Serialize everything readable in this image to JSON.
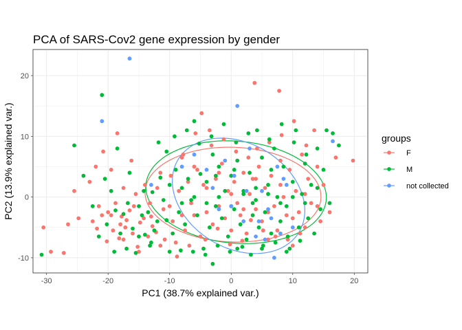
{
  "chart_data": {
    "type": "scatter",
    "title": "PCA of SARS-Cov2 gene expression by gender",
    "xlabel": "PC1 (38.7% explained var.)",
    "ylabel": "PC2 (13.9% explained var.)",
    "xlim": [
      -32.2,
      22.2
    ],
    "ylim": [
      -12.5,
      24.3
    ],
    "x_ticks": [
      -30,
      -20,
      -10,
      0,
      10,
      20
    ],
    "y_ticks": [
      -10,
      0,
      10,
      20
    ],
    "x_tick_labels": [
      "-30",
      "-20",
      "-10",
      "0",
      "10",
      "20"
    ],
    "y_tick_labels": [
      "-10",
      "0",
      "10",
      "20"
    ],
    "grid": true,
    "legend": {
      "title": "groups",
      "position": "right",
      "entries": [
        "F",
        "M",
        "not collected"
      ]
    },
    "series": [
      {
        "name": "F",
        "color": "#F8766D",
        "points": [
          [
            -30.5,
            -5
          ],
          [
            -29.3,
            -9
          ],
          [
            -27.2,
            -9.2
          ],
          [
            -24.8,
            -3.5
          ],
          [
            -22.5,
            -4
          ],
          [
            -21.5,
            -1.5
          ],
          [
            -21.8,
            -5.2
          ],
          [
            -20.2,
            -7.3
          ],
          [
            -20,
            -2.5
          ],
          [
            -19.5,
            -3
          ],
          [
            -19.2,
            -5.5
          ],
          [
            -18.8,
            -1
          ],
          [
            -18,
            -4.5
          ],
          [
            -17.8,
            -3.2
          ],
          [
            -17.2,
            -5
          ],
          [
            -16.5,
            -2.2
          ],
          [
            -16,
            -6
          ],
          [
            -15.8,
            -1.5
          ],
          [
            -15.2,
            -8.2
          ],
          [
            -14.8,
            -4.2
          ],
          [
            -14.2,
            -3.5
          ],
          [
            -13.5,
            -6.5
          ],
          [
            -13.2,
            -1
          ],
          [
            -12.8,
            -4.8
          ],
          [
            -18.5,
            10.5
          ],
          [
            -19.5,
            4.5
          ],
          [
            -17.5,
            1.5
          ],
          [
            -17,
            -3.8
          ],
          [
            -16.2,
            6
          ],
          [
            -15.5,
            0.5
          ],
          [
            -12,
            1.5
          ],
          [
            -11.5,
            4
          ],
          [
            -11,
            -2
          ],
          [
            -10.8,
            -7
          ],
          [
            -10,
            -1.5
          ],
          [
            -9.8,
            3.5
          ],
          [
            -9.5,
            -4
          ],
          [
            -8.8,
            -9.8
          ],
          [
            -8.5,
            1
          ],
          [
            -8,
            6.5
          ],
          [
            -7.5,
            -5.5
          ],
          [
            -7,
            2.5
          ],
          [
            -6.5,
            -1
          ],
          [
            -6,
            -3
          ],
          [
            -5.5,
            4.5
          ],
          [
            -5,
            -6.5
          ],
          [
            -4.8,
            13.8
          ],
          [
            -4.5,
            2
          ],
          [
            -4,
            -2.5
          ],
          [
            -3.5,
            11
          ],
          [
            -3,
            -4.5
          ],
          [
            -2.5,
            3
          ],
          [
            -2,
            -1.5
          ],
          [
            -1.5,
            5.5
          ],
          [
            -1,
            -3.5
          ],
          [
            -0.5,
            1
          ],
          [
            0,
            -5.5
          ],
          [
            0.5,
            2.5
          ],
          [
            1,
            -1
          ],
          [
            1.5,
            -3
          ],
          [
            2,
            4
          ],
          [
            2.5,
            -6
          ],
          [
            3,
            0.5
          ],
          [
            3.5,
            3
          ],
          [
            3.8,
            18.8
          ],
          [
            4,
            -2
          ],
          [
            4.5,
            5
          ],
          [
            5,
            -4
          ],
          [
            5.5,
            1.5
          ],
          [
            6,
            -7
          ],
          [
            6.5,
            3.5
          ],
          [
            7,
            -1.5
          ],
          [
            7.5,
            -5.5
          ],
          [
            7.8,
            17.5
          ],
          [
            8,
            6
          ],
          [
            8.5,
            0
          ],
          [
            9,
            -3
          ],
          [
            9.5,
            4.5
          ],
          [
            10,
            -8
          ],
          [
            10.5,
            1
          ],
          [
            11,
            -2.5
          ],
          [
            11.5,
            7
          ],
          [
            12,
            -5
          ],
          [
            12.5,
            3
          ],
          [
            13,
            -1
          ],
          [
            13.5,
            11
          ],
          [
            14,
            5
          ],
          [
            14.5,
            -4
          ],
          [
            15,
            2
          ],
          [
            16,
            -2.5
          ],
          [
            17,
            6.5
          ],
          [
            19.8,
            6
          ],
          [
            -23,
            2.5
          ],
          [
            -22,
            5
          ],
          [
            -20.8,
            7.5
          ],
          [
            -18.2,
            -6.8
          ],
          [
            -14,
            2
          ],
          [
            -13,
            -3.2
          ],
          [
            -12.2,
            -5.8
          ],
          [
            -9,
            -7.5
          ],
          [
            -7.8,
            7
          ],
          [
            -6.8,
            -8
          ],
          [
            -5.8,
            10.5
          ],
          [
            -4.2,
            -7
          ],
          [
            -3.2,
            8.5
          ],
          [
            -2.2,
            -5.2
          ],
          [
            -1.2,
            9.5
          ],
          [
            -0.2,
            -7.8
          ],
          [
            0.8,
            7.5
          ],
          [
            1.8,
            -7.2
          ],
          [
            2.8,
            6.5
          ],
          [
            3.2,
            -3.8
          ],
          [
            4.2,
            8
          ],
          [
            5.2,
            -5.5
          ],
          [
            6.2,
            9
          ],
          [
            7.2,
            -6.5
          ],
          [
            8.2,
            10.2
          ],
          [
            9.2,
            -7
          ],
          [
            10.2,
            12.5
          ],
          [
            11.2,
            -6
          ],
          [
            12.2,
            8.5
          ],
          [
            -25.5,
            1
          ],
          [
            -26.5,
            -4.5
          ],
          [
            -21,
            -3
          ],
          [
            -17.5,
            -7
          ],
          [
            -15,
            -9
          ],
          [
            -11.5,
            -8
          ],
          [
            -8,
            -3
          ],
          [
            -6,
            5
          ],
          [
            -4,
            1.5
          ],
          [
            -2,
            4
          ],
          [
            0,
            0.5
          ],
          [
            2,
            -2
          ],
          [
            4,
            3
          ],
          [
            6,
            -2.5
          ],
          [
            8,
            2
          ],
          [
            10,
            -3.5
          ],
          [
            12,
            0.5
          ],
          [
            14,
            -1.5
          ]
        ]
      },
      {
        "name": "M",
        "color": "#00BA38",
        "points": [
          [
            -30.8,
            -9.5
          ],
          [
            -25.5,
            8.5
          ],
          [
            -24,
            3.5
          ],
          [
            -21,
            16.8
          ],
          [
            -20.2,
            -4.5
          ],
          [
            -19.5,
            1
          ],
          [
            -18.8,
            -2.2
          ],
          [
            -18,
            -6
          ],
          [
            -17.5,
            -2.8
          ],
          [
            -16.8,
            -1
          ],
          [
            -16,
            -5.2
          ],
          [
            -15.5,
            -9.2
          ],
          [
            -15,
            -6.5
          ],
          [
            -14.5,
            -3
          ],
          [
            -14,
            -6.2
          ],
          [
            -13.5,
            -2.5
          ],
          [
            -13.2,
            -8
          ],
          [
            -12.8,
            0.8
          ],
          [
            -12,
            -4
          ],
          [
            -11.5,
            3.2
          ],
          [
            -11,
            -0.5
          ],
          [
            -10.5,
            -3.8
          ],
          [
            -10,
            2
          ],
          [
            -9.5,
            -6
          ],
          [
            -9,
            4.5
          ],
          [
            -8.5,
            -2.5
          ],
          [
            -8,
            1.5
          ],
          [
            -7.5,
            -4.5
          ],
          [
            -7,
            3
          ],
          [
            -6.5,
            -0.5
          ],
          [
            -6,
            12.5
          ],
          [
            -5.5,
            -3
          ],
          [
            -5,
            3.8
          ],
          [
            -4.5,
            -8.5
          ],
          [
            -4,
            2.5
          ],
          [
            -3.5,
            -5
          ],
          [
            -3,
            7
          ],
          [
            -2.5,
            -1.5
          ],
          [
            -2,
            5
          ],
          [
            -1.5,
            -3.5
          ],
          [
            -1,
            1
          ],
          [
            -0.5,
            -6.5
          ],
          [
            0,
            3.5
          ],
          [
            0.5,
            -2
          ],
          [
            1,
            6
          ],
          [
            1.5,
            -4.5
          ],
          [
            2,
            0.5
          ],
          [
            2.5,
            -7
          ],
          [
            3,
            4
          ],
          [
            3.5,
            -1
          ],
          [
            4,
            1.5
          ],
          [
            4.5,
            -5
          ],
          [
            5,
            6.5
          ],
          [
            5.5,
            -2.5
          ],
          [
            6,
            2
          ],
          [
            6.5,
            -6
          ],
          [
            7,
            8
          ],
          [
            7.5,
            0
          ],
          [
            8,
            -4
          ],
          [
            8.5,
            5
          ],
          [
            9,
            -1.5
          ],
          [
            9.5,
            -8.5
          ],
          [
            10,
            2.5
          ],
          [
            10.5,
            11
          ],
          [
            11,
            -5
          ],
          [
            11.5,
            0.5
          ],
          [
            12,
            5.5
          ],
          [
            12.5,
            -3.5
          ],
          [
            13,
            2
          ],
          [
            13.5,
            -6
          ],
          [
            14,
            8
          ],
          [
            14.5,
            -2
          ],
          [
            15,
            4.5
          ],
          [
            15.5,
            11
          ],
          [
            16,
            -1
          ],
          [
            16.5,
            10.5
          ],
          [
            17.5,
            8.5
          ],
          [
            -19,
            -9
          ],
          [
            -17,
            -8.5
          ],
          [
            -14.2,
            1
          ],
          [
            -13,
            -7.5
          ],
          [
            -11.8,
            9
          ],
          [
            -10.5,
            7.5
          ],
          [
            -9.2,
            10
          ],
          [
            -8.2,
            -8.8
          ],
          [
            -7.2,
            11
          ],
          [
            -6.2,
            -9
          ],
          [
            -5.2,
            8.8
          ],
          [
            -4.2,
            -9.5
          ],
          [
            -3.2,
            10
          ],
          [
            -2.2,
            -8
          ],
          [
            -1.2,
            12
          ],
          [
            -0.2,
            -9
          ],
          [
            0.8,
            9
          ],
          [
            1.8,
            -8.2
          ],
          [
            2.8,
            10.5
          ],
          [
            3.2,
            -9.5
          ],
          [
            4.2,
            11
          ],
          [
            5.2,
            -8
          ],
          [
            6.2,
            9.5
          ],
          [
            7.2,
            -7.5
          ],
          [
            8.2,
            12
          ],
          [
            9.2,
            -6.5
          ],
          [
            10.2,
            9
          ],
          [
            11.2,
            -7.2
          ],
          [
            12.2,
            7
          ],
          [
            -22.5,
            -1.5
          ],
          [
            -21.5,
            -6.5
          ],
          [
            -20.5,
            3
          ],
          [
            -18.5,
            8
          ],
          [
            -16.5,
            4
          ],
          [
            -15,
            -1.5
          ],
          [
            -12.5,
            -5.5
          ],
          [
            -10,
            -9
          ],
          [
            -8,
            -1
          ],
          [
            -6,
            0
          ],
          [
            -4,
            -1
          ],
          [
            -2,
            0
          ],
          [
            0,
            -1.5
          ],
          [
            2,
            1
          ],
          [
            4,
            -0.5
          ],
          [
            6,
            0.5
          ],
          [
            8,
            -1
          ],
          [
            10,
            0
          ],
          [
            12,
            -1
          ],
          [
            14,
            1.5
          ],
          [
            -3,
            -11
          ],
          [
            1,
            -8.5
          ],
          [
            5,
            -8.5
          ],
          [
            9,
            -9
          ],
          [
            -2.5,
            3.5
          ],
          [
            0.5,
            4.5
          ],
          [
            3.5,
            -3
          ],
          [
            6.5,
            4.5
          ]
        ]
      },
      {
        "name": "not collected",
        "color": "#619CFF",
        "points": [
          [
            -16.5,
            22.8
          ],
          [
            -21,
            12.5
          ],
          [
            -13,
            2
          ],
          [
            -8,
            5
          ],
          [
            -4,
            4.5
          ],
          [
            -2,
            -2
          ],
          [
            -1,
            6
          ],
          [
            0,
            -1.5
          ],
          [
            1,
            15
          ],
          [
            2,
            -4
          ],
          [
            3,
            8
          ],
          [
            4,
            -6.5
          ],
          [
            5,
            1
          ],
          [
            6,
            -2
          ],
          [
            6.5,
            -3.5
          ],
          [
            7,
            -10
          ],
          [
            8,
            -6
          ],
          [
            8.5,
            3
          ],
          [
            9,
            2
          ],
          [
            10,
            -5
          ],
          [
            16.5,
            9.2
          ],
          [
            -6,
            7
          ],
          [
            -3,
            1.5
          ],
          [
            0.5,
            3.5
          ],
          [
            2.5,
            1
          ],
          [
            4.5,
            -4
          ],
          [
            5.5,
            -7
          ],
          [
            7.5,
            5
          ]
        ]
      }
    ],
    "ellipses": [
      {
        "name": "F",
        "color": "#F8766D",
        "cx": 0.3,
        "cy": 0.4,
        "rx": 14.3,
        "ry": 7.8,
        "angle_deg": -2
      },
      {
        "name": "M",
        "color": "#00BA38",
        "cx": 0.8,
        "cy": 0.8,
        "rx": 14.7,
        "ry": 8.4,
        "angle_deg": -5
      },
      {
        "name": "not collected",
        "color": "#619CFF",
        "cx": 1.2,
        "cy": 0.2,
        "rx": 11.5,
        "ry": 8.6,
        "angle_deg": -32
      }
    ]
  }
}
